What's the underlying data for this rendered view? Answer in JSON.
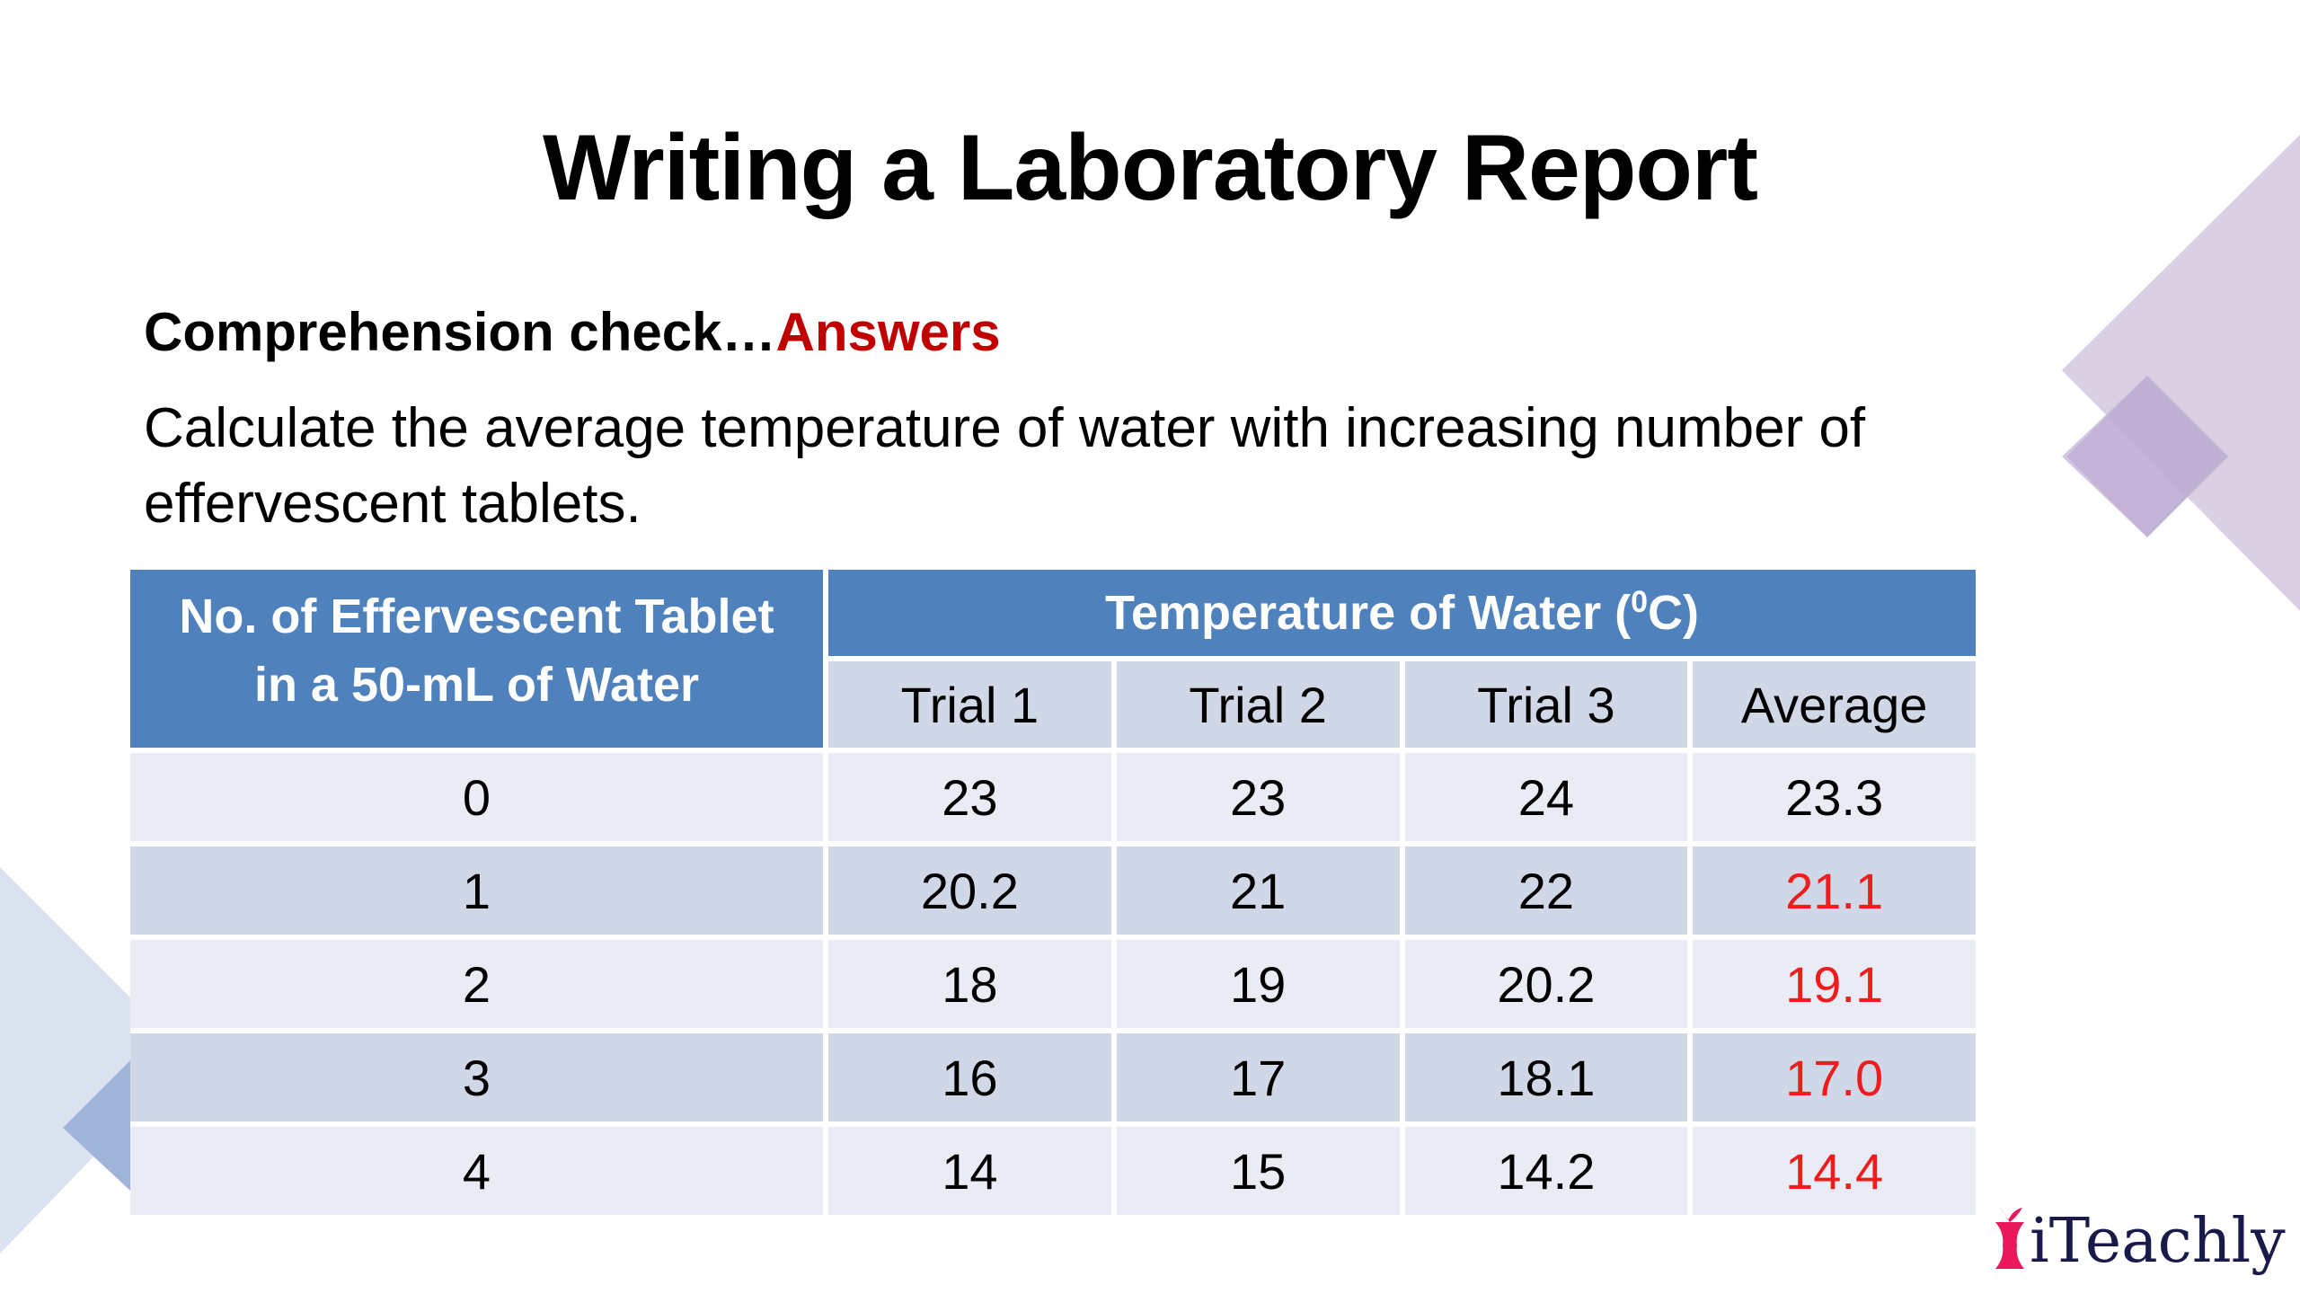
{
  "title": "Writing a Laboratory Report",
  "subtitle": {
    "prefix": "Comprehension check…",
    "highlight": "Answers"
  },
  "instruction": "Calculate the average temperature of water with increasing number of effervescent tablets.",
  "table": {
    "header_left": "No. of Effervescent Tablet in a 50-mL of Water",
    "header_group": "Temperature of Water (",
    "header_group_sup": "0",
    "header_group_end": "C)",
    "columns": [
      "Trial 1",
      "Trial 2",
      "Trial 3",
      "Average"
    ],
    "rows": [
      {
        "tablets": "0",
        "t1": "23",
        "t2": "23",
        "t3": "24",
        "avg": "23.3",
        "avg_is_answer": false
      },
      {
        "tablets": "1",
        "t1": "20.2",
        "t2": "21",
        "t3": "22",
        "avg": "21.1",
        "avg_is_answer": true
      },
      {
        "tablets": "2",
        "t1": "18",
        "t2": "19",
        "t3": "20.2",
        "avg": "19.1",
        "avg_is_answer": true
      },
      {
        "tablets": "3",
        "t1": "16",
        "t2": "17",
        "t3": "18.1",
        "avg": "17.0",
        "avg_is_answer": true
      },
      {
        "tablets": "4",
        "t1": "14",
        "t2": "15",
        "t3": "14.2",
        "avg": "14.4",
        "avg_is_answer": true
      }
    ]
  },
  "logo": {
    "text": "iTeachly"
  },
  "colors": {
    "header": "#4f81bd",
    "answer": "#ee1c1c",
    "highlight": "#c00000"
  }
}
